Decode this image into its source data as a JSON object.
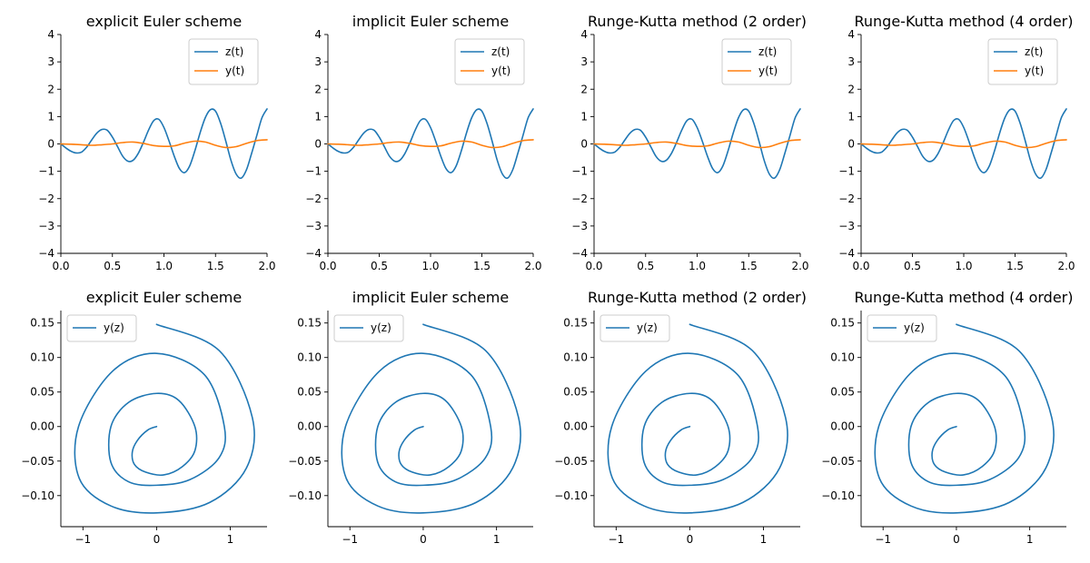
{
  "chart_data": [
    {
      "type": "line",
      "title": "explicit Euler scheme",
      "xlim": [
        0,
        2
      ],
      "ylim": [
        -4,
        4
      ],
      "xticks": [
        "0.0",
        "0.5",
        "1.0",
        "1.5",
        "2.0"
      ],
      "yticks": [
        "−4",
        "−3",
        "−2",
        "−1",
        "0",
        "1",
        "2",
        "3",
        "4"
      ],
      "legend": "top-right",
      "series": [
        {
          "name": "z(t)",
          "color": "#1f77b4",
          "x": [
            0,
            0.05,
            0.1,
            0.15,
            0.2,
            0.25,
            0.3,
            0.35,
            0.4,
            0.45,
            0.5,
            0.55,
            0.6,
            0.65,
            0.7,
            0.75,
            0.8,
            0.85,
            0.9,
            0.95,
            1.0,
            1.05,
            1.1,
            1.15,
            1.2,
            1.25,
            1.3,
            1.35,
            1.4,
            1.45,
            1.5,
            1.55,
            1.6,
            1.65,
            1.7,
            1.75,
            1.8,
            1.85,
            1.9,
            1.95,
            2.0
          ],
          "y": [
            0.0,
            -0.15,
            -0.27,
            -0.33,
            -0.3,
            -0.12,
            0.15,
            0.4,
            0.53,
            0.5,
            0.25,
            -0.1,
            -0.45,
            -0.63,
            -0.6,
            -0.35,
            0.05,
            0.5,
            0.85,
            0.9,
            0.6,
            0.1,
            -0.45,
            -0.9,
            -1.05,
            -0.8,
            -0.25,
            0.4,
            0.95,
            1.25,
            1.2,
            0.75,
            0.1,
            -0.6,
            -1.1,
            -1.25,
            -0.95,
            -0.35,
            0.3,
            0.95,
            1.28
          ]
        },
        {
          "name": "y(t)",
          "color": "#ff7f0e",
          "x": [
            0,
            0.1,
            0.2,
            0.3,
            0.4,
            0.5,
            0.6,
            0.7,
            0.8,
            0.9,
            1.0,
            1.1,
            1.2,
            1.3,
            1.4,
            1.5,
            1.6,
            1.7,
            1.8,
            1.9,
            2.0
          ],
          "y": [
            0.0,
            -0.01,
            -0.03,
            -0.05,
            -0.03,
            0.0,
            0.05,
            0.07,
            0.02,
            -0.06,
            -0.09,
            -0.07,
            0.03,
            0.1,
            0.07,
            -0.05,
            -0.13,
            -0.1,
            0.02,
            0.12,
            0.15
          ]
        }
      ]
    },
    {
      "type": "line",
      "title": "implicit Euler scheme",
      "xlim": [
        0,
        2
      ],
      "ylim": [
        -4,
        4
      ],
      "xticks": [
        "0.0",
        "0.5",
        "1.0",
        "1.5",
        "2.0"
      ],
      "yticks": [
        "−4",
        "−3",
        "−2",
        "−1",
        "0",
        "1",
        "2",
        "3",
        "4"
      ],
      "legend": "top-right",
      "series": [
        {
          "name": "z(t)",
          "color": "#1f77b4",
          "x": [
            0,
            0.05,
            0.1,
            0.15,
            0.2,
            0.25,
            0.3,
            0.35,
            0.4,
            0.45,
            0.5,
            0.55,
            0.6,
            0.65,
            0.7,
            0.75,
            0.8,
            0.85,
            0.9,
            0.95,
            1.0,
            1.05,
            1.1,
            1.15,
            1.2,
            1.25,
            1.3,
            1.35,
            1.4,
            1.45,
            1.5,
            1.55,
            1.6,
            1.65,
            1.7,
            1.75,
            1.8,
            1.85,
            1.9,
            1.95,
            2.0
          ],
          "y": [
            0.0,
            -0.15,
            -0.27,
            -0.33,
            -0.3,
            -0.12,
            0.15,
            0.4,
            0.53,
            0.5,
            0.25,
            -0.1,
            -0.45,
            -0.63,
            -0.6,
            -0.35,
            0.05,
            0.5,
            0.85,
            0.9,
            0.6,
            0.1,
            -0.45,
            -0.9,
            -1.05,
            -0.8,
            -0.25,
            0.4,
            0.95,
            1.25,
            1.2,
            0.75,
            0.1,
            -0.6,
            -1.1,
            -1.25,
            -0.95,
            -0.35,
            0.3,
            0.95,
            1.28
          ]
        },
        {
          "name": "y(t)",
          "color": "#ff7f0e",
          "x": [
            0,
            0.1,
            0.2,
            0.3,
            0.4,
            0.5,
            0.6,
            0.7,
            0.8,
            0.9,
            1.0,
            1.1,
            1.2,
            1.3,
            1.4,
            1.5,
            1.6,
            1.7,
            1.8,
            1.9,
            2.0
          ],
          "y": [
            0.0,
            -0.01,
            -0.03,
            -0.05,
            -0.03,
            0.0,
            0.05,
            0.07,
            0.02,
            -0.06,
            -0.09,
            -0.07,
            0.03,
            0.1,
            0.07,
            -0.05,
            -0.13,
            -0.1,
            0.02,
            0.12,
            0.15
          ]
        }
      ]
    },
    {
      "type": "line",
      "title": "Runge-Kutta method (2 order)",
      "xlim": [
        0,
        2
      ],
      "ylim": [
        -4,
        4
      ],
      "xticks": [
        "0.0",
        "0.5",
        "1.0",
        "1.5",
        "2.0"
      ],
      "yticks": [
        "−4",
        "−3",
        "−2",
        "−1",
        "0",
        "1",
        "2",
        "3",
        "4"
      ],
      "legend": "top-right",
      "series": [
        {
          "name": "z(t)",
          "color": "#1f77b4",
          "x": [
            0,
            0.05,
            0.1,
            0.15,
            0.2,
            0.25,
            0.3,
            0.35,
            0.4,
            0.45,
            0.5,
            0.55,
            0.6,
            0.65,
            0.7,
            0.75,
            0.8,
            0.85,
            0.9,
            0.95,
            1.0,
            1.05,
            1.1,
            1.15,
            1.2,
            1.25,
            1.3,
            1.35,
            1.4,
            1.45,
            1.5,
            1.55,
            1.6,
            1.65,
            1.7,
            1.75,
            1.8,
            1.85,
            1.9,
            1.95,
            2.0
          ],
          "y": [
            0.0,
            -0.15,
            -0.27,
            -0.33,
            -0.3,
            -0.12,
            0.15,
            0.4,
            0.53,
            0.5,
            0.25,
            -0.1,
            -0.45,
            -0.63,
            -0.6,
            -0.35,
            0.05,
            0.5,
            0.85,
            0.9,
            0.6,
            0.1,
            -0.45,
            -0.9,
            -1.05,
            -0.8,
            -0.25,
            0.4,
            0.95,
            1.25,
            1.2,
            0.75,
            0.1,
            -0.6,
            -1.1,
            -1.25,
            -0.95,
            -0.35,
            0.3,
            0.95,
            1.28
          ]
        },
        {
          "name": "y(t)",
          "color": "#ff7f0e",
          "x": [
            0,
            0.1,
            0.2,
            0.3,
            0.4,
            0.5,
            0.6,
            0.7,
            0.8,
            0.9,
            1.0,
            1.1,
            1.2,
            1.3,
            1.4,
            1.5,
            1.6,
            1.7,
            1.8,
            1.9,
            2.0
          ],
          "y": [
            0.0,
            -0.01,
            -0.03,
            -0.05,
            -0.03,
            0.0,
            0.05,
            0.07,
            0.02,
            -0.06,
            -0.09,
            -0.07,
            0.03,
            0.1,
            0.07,
            -0.05,
            -0.13,
            -0.1,
            0.02,
            0.12,
            0.15
          ]
        }
      ]
    },
    {
      "type": "line",
      "title": "Runge-Kutta method (4 order)",
      "xlim": [
        0,
        2
      ],
      "ylim": [
        -4,
        4
      ],
      "xticks": [
        "0.0",
        "0.5",
        "1.0",
        "1.5",
        "2.0"
      ],
      "yticks": [
        "−4",
        "−3",
        "−2",
        "−1",
        "0",
        "1",
        "2",
        "3",
        "4"
      ],
      "legend": "top-right",
      "series": [
        {
          "name": "z(t)",
          "color": "#1f77b4",
          "x": [
            0,
            0.05,
            0.1,
            0.15,
            0.2,
            0.25,
            0.3,
            0.35,
            0.4,
            0.45,
            0.5,
            0.55,
            0.6,
            0.65,
            0.7,
            0.75,
            0.8,
            0.85,
            0.9,
            0.95,
            1.0,
            1.05,
            1.1,
            1.15,
            1.2,
            1.25,
            1.3,
            1.35,
            1.4,
            1.45,
            1.5,
            1.55,
            1.6,
            1.65,
            1.7,
            1.75,
            1.8,
            1.85,
            1.9,
            1.95,
            2.0
          ],
          "y": [
            0.0,
            -0.15,
            -0.27,
            -0.33,
            -0.3,
            -0.12,
            0.15,
            0.4,
            0.53,
            0.5,
            0.25,
            -0.1,
            -0.45,
            -0.63,
            -0.6,
            -0.35,
            0.05,
            0.5,
            0.85,
            0.9,
            0.6,
            0.1,
            -0.45,
            -0.9,
            -1.05,
            -0.8,
            -0.25,
            0.4,
            0.95,
            1.25,
            1.2,
            0.75,
            0.1,
            -0.6,
            -1.1,
            -1.25,
            -0.95,
            -0.35,
            0.3,
            0.95,
            1.28
          ]
        },
        {
          "name": "y(t)",
          "color": "#ff7f0e",
          "x": [
            0,
            0.1,
            0.2,
            0.3,
            0.4,
            0.5,
            0.6,
            0.7,
            0.8,
            0.9,
            1.0,
            1.1,
            1.2,
            1.3,
            1.4,
            1.5,
            1.6,
            1.7,
            1.8,
            1.9,
            2.0
          ],
          "y": [
            0.0,
            -0.01,
            -0.03,
            -0.05,
            -0.03,
            0.0,
            0.05,
            0.07,
            0.02,
            -0.06,
            -0.09,
            -0.07,
            0.03,
            0.1,
            0.07,
            -0.05,
            -0.13,
            -0.1,
            0.02,
            0.12,
            0.15
          ]
        }
      ]
    },
    {
      "type": "line",
      "title": "explicit Euler scheme",
      "xlim": [
        -1.3,
        1.5
      ],
      "ylim": [
        -0.145,
        0.168
      ],
      "xticks": [
        "−1",
        "0",
        "1"
      ],
      "yticks": [
        "−0.10",
        "−0.05",
        "0.00",
        "0.05",
        "0.10",
        "0.15"
      ],
      "legend": "top-left",
      "series": [
        {
          "name": "y(z)",
          "color": "#1f77b4",
          "x": [
            0.0,
            -0.12,
            -0.26,
            -0.33,
            -0.3,
            -0.15,
            0.1,
            0.35,
            0.52,
            0.52,
            0.3,
            0.0,
            -0.38,
            -0.62,
            -0.62,
            -0.38,
            0.0,
            0.45,
            0.85,
            0.92,
            0.65,
            0.0,
            -0.6,
            -1.06,
            -1.05,
            -0.62,
            0.0,
            0.72,
            1.22,
            1.3,
            0.85,
            0.0
          ],
          "y": [
            0.0,
            -0.005,
            -0.02,
            -0.037,
            -0.055,
            -0.066,
            -0.07,
            -0.058,
            -0.035,
            0.0,
            0.038,
            0.048,
            0.035,
            0.0,
            -0.052,
            -0.08,
            -0.085,
            -0.077,
            -0.045,
            0.0,
            0.075,
            0.106,
            0.08,
            0.0,
            -0.075,
            -0.115,
            -0.125,
            -0.11,
            -0.06,
            0.013,
            0.11,
            0.148
          ]
        }
      ]
    },
    {
      "type": "line",
      "title": "implicit Euler scheme",
      "xlim": [
        -1.3,
        1.5
      ],
      "ylim": [
        -0.145,
        0.168
      ],
      "xticks": [
        "−1",
        "0",
        "1"
      ],
      "yticks": [
        "−0.10",
        "−0.05",
        "0.00",
        "0.05",
        "0.10",
        "0.15"
      ],
      "legend": "top-left",
      "series": [
        {
          "name": "y(z)",
          "color": "#1f77b4",
          "x": [
            0.0,
            -0.12,
            -0.26,
            -0.33,
            -0.3,
            -0.15,
            0.1,
            0.35,
            0.52,
            0.52,
            0.3,
            0.0,
            -0.38,
            -0.62,
            -0.62,
            -0.38,
            0.0,
            0.45,
            0.85,
            0.92,
            0.65,
            0.0,
            -0.6,
            -1.06,
            -1.05,
            -0.62,
            0.0,
            0.72,
            1.22,
            1.3,
            0.85,
            0.0
          ],
          "y": [
            0.0,
            -0.005,
            -0.02,
            -0.037,
            -0.055,
            -0.066,
            -0.07,
            -0.058,
            -0.035,
            0.0,
            0.038,
            0.048,
            0.035,
            0.0,
            -0.052,
            -0.08,
            -0.085,
            -0.077,
            -0.045,
            0.0,
            0.075,
            0.106,
            0.08,
            0.0,
            -0.075,
            -0.115,
            -0.125,
            -0.11,
            -0.06,
            0.013,
            0.11,
            0.148
          ]
        }
      ]
    },
    {
      "type": "line",
      "title": "Runge-Kutta method (2 order)",
      "xlim": [
        -1.3,
        1.5
      ],
      "ylim": [
        -0.145,
        0.168
      ],
      "xticks": [
        "−1",
        "0",
        "1"
      ],
      "yticks": [
        "−0.10",
        "−0.05",
        "0.00",
        "0.05",
        "0.10",
        "0.15"
      ],
      "legend": "top-left",
      "series": [
        {
          "name": "y(z)",
          "color": "#1f77b4",
          "x": [
            0.0,
            -0.12,
            -0.26,
            -0.33,
            -0.3,
            -0.15,
            0.1,
            0.35,
            0.52,
            0.52,
            0.3,
            0.0,
            -0.38,
            -0.62,
            -0.62,
            -0.38,
            0.0,
            0.45,
            0.85,
            0.92,
            0.65,
            0.0,
            -0.6,
            -1.06,
            -1.05,
            -0.62,
            0.0,
            0.72,
            1.22,
            1.3,
            0.85,
            0.0
          ],
          "y": [
            0.0,
            -0.005,
            -0.02,
            -0.037,
            -0.055,
            -0.066,
            -0.07,
            -0.058,
            -0.035,
            0.0,
            0.038,
            0.048,
            0.035,
            0.0,
            -0.052,
            -0.08,
            -0.085,
            -0.077,
            -0.045,
            0.0,
            0.075,
            0.106,
            0.08,
            0.0,
            -0.075,
            -0.115,
            -0.125,
            -0.11,
            -0.06,
            0.013,
            0.11,
            0.148
          ]
        }
      ]
    },
    {
      "type": "line",
      "title": "Runge-Kutta method (4 order)",
      "xlim": [
        -1.3,
        1.5
      ],
      "ylim": [
        -0.145,
        0.168
      ],
      "xticks": [
        "−1",
        "0",
        "1"
      ],
      "yticks": [
        "−0.10",
        "−0.05",
        "0.00",
        "0.05",
        "0.10",
        "0.15"
      ],
      "legend": "top-left",
      "series": [
        {
          "name": "y(z)",
          "color": "#1f77b4",
          "x": [
            0.0,
            -0.12,
            -0.26,
            -0.33,
            -0.3,
            -0.15,
            0.1,
            0.35,
            0.52,
            0.52,
            0.3,
            0.0,
            -0.38,
            -0.62,
            -0.62,
            -0.38,
            0.0,
            0.45,
            0.85,
            0.92,
            0.65,
            0.0,
            -0.6,
            -1.06,
            -1.05,
            -0.62,
            0.0,
            0.72,
            1.22,
            1.3,
            0.85,
            0.0
          ],
          "y": [
            0.0,
            -0.005,
            -0.02,
            -0.037,
            -0.055,
            -0.066,
            -0.07,
            -0.058,
            -0.035,
            0.0,
            0.038,
            0.048,
            0.035,
            0.0,
            -0.052,
            -0.08,
            -0.085,
            -0.077,
            -0.045,
            0.0,
            0.075,
            0.106,
            0.08,
            0.0,
            -0.075,
            -0.115,
            -0.125,
            -0.11,
            -0.06,
            0.013,
            0.11,
            0.148
          ]
        }
      ]
    }
  ]
}
